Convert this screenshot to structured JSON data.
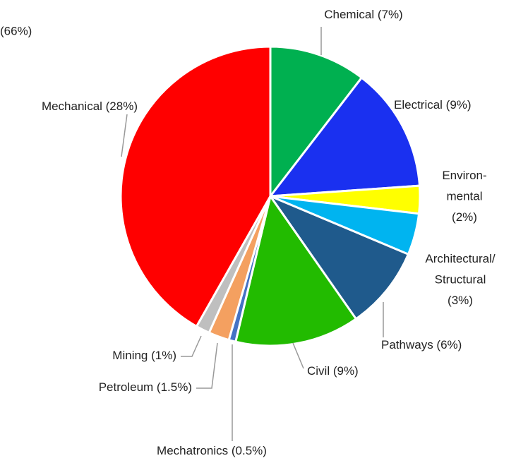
{
  "chart_data": {
    "type": "pie",
    "annotation": "(66%)",
    "categories": [
      "Chemical (7%)",
      "Electrical (9%)",
      "Environ-\nmental\n(2%)",
      "Architectural/\nStructural\n(3%)",
      "Pathways (6%)",
      "Civil (9%)",
      "Mechatronics (0.5%)",
      "Petroleum (1.5%)",
      "Mining (1%)",
      "Mechanical (28%)"
    ],
    "values": [
      7,
      9,
      2,
      3,
      6,
      9,
      0.5,
      1.5,
      1,
      28
    ],
    "colors": [
      "#00b050",
      "#1a30f0",
      "#ffff00",
      "#00b4f0",
      "#1f5a8c",
      "#22bb00",
      "#4472c4",
      "#f4a060",
      "#bfbfbf",
      "#ff0000"
    ]
  }
}
